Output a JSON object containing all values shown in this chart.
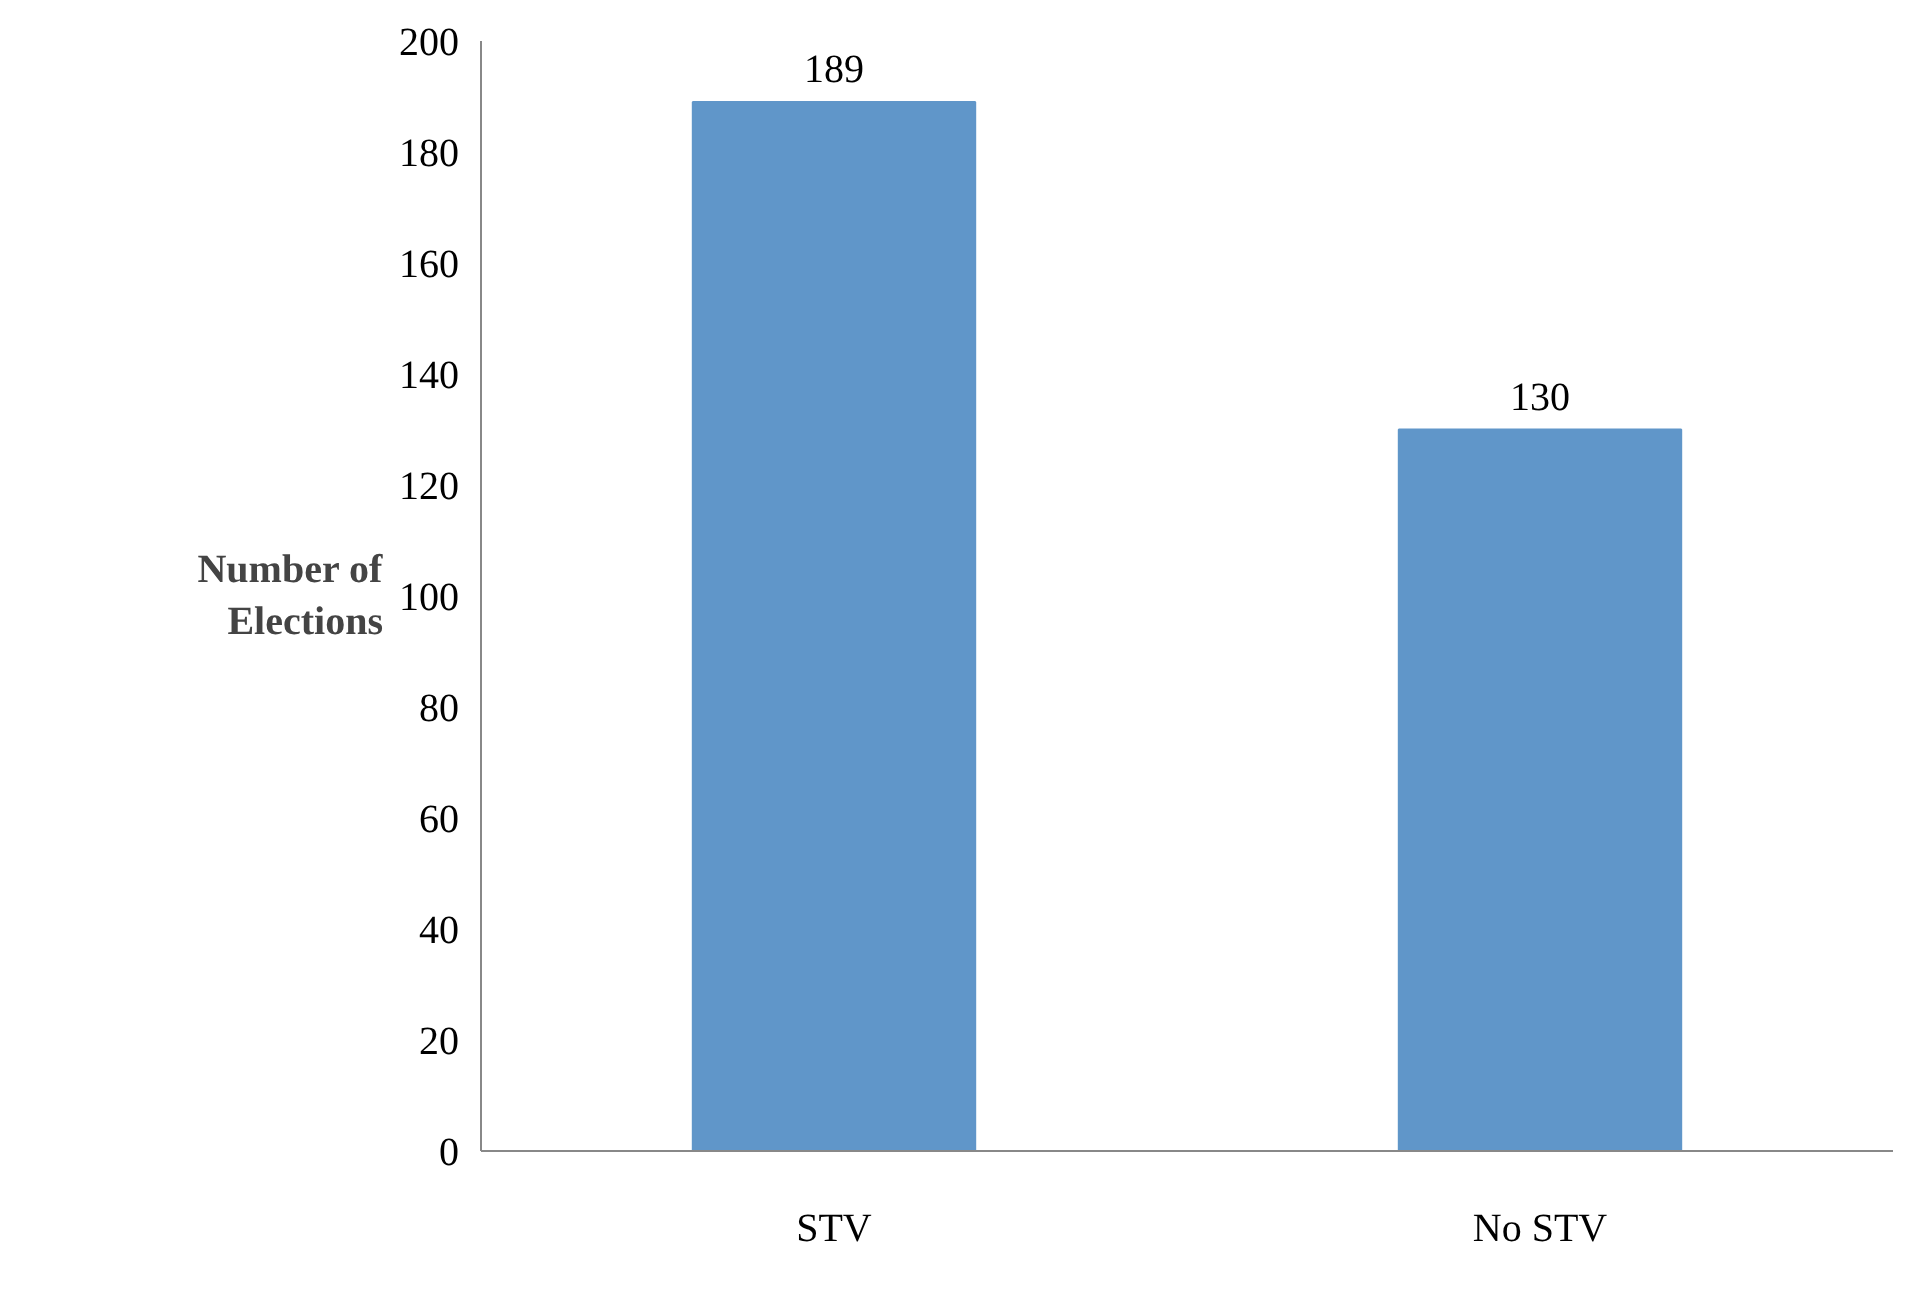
{
  "chart_data": {
    "type": "bar",
    "ylabel": "Number of Elections",
    "categories": [
      "STV",
      "No STV"
    ],
    "values": [
      189,
      130
    ],
    "color": "#6096c9",
    "ylim": [
      0,
      200
    ],
    "yticks": [
      0,
      20,
      40,
      60,
      80,
      100,
      120,
      140,
      160,
      180,
      200
    ],
    "grid": false,
    "data_labels": true
  }
}
